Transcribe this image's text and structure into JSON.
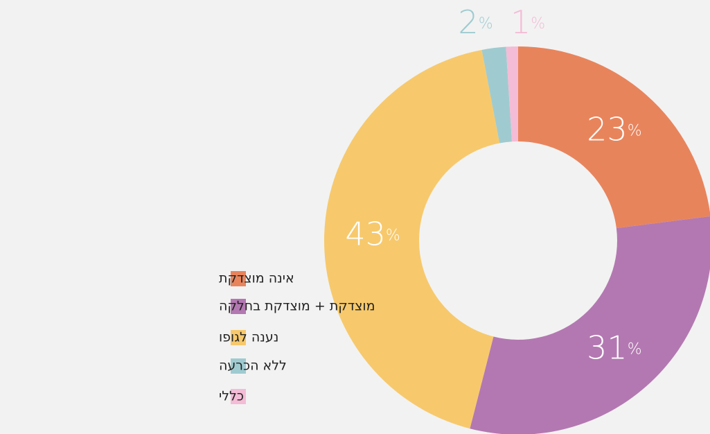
{
  "chart_data": {
    "type": "donut",
    "categories": [
      "אינה מוצדקת",
      "מוצדקת + מוצדקת בחלקה",
      "נענה לגופו",
      "ללא הכרעה",
      "כללי"
    ],
    "values": [
      23,
      31,
      43,
      2,
      1
    ],
    "value_labels": [
      "23%",
      "31%",
      "43%",
      "2%",
      "1%"
    ],
    "colors": [
      "#e8845c",
      "#b378b1",
      "#f7c96c",
      "#9fcbd0",
      "#f4bcd6"
    ]
  }
}
